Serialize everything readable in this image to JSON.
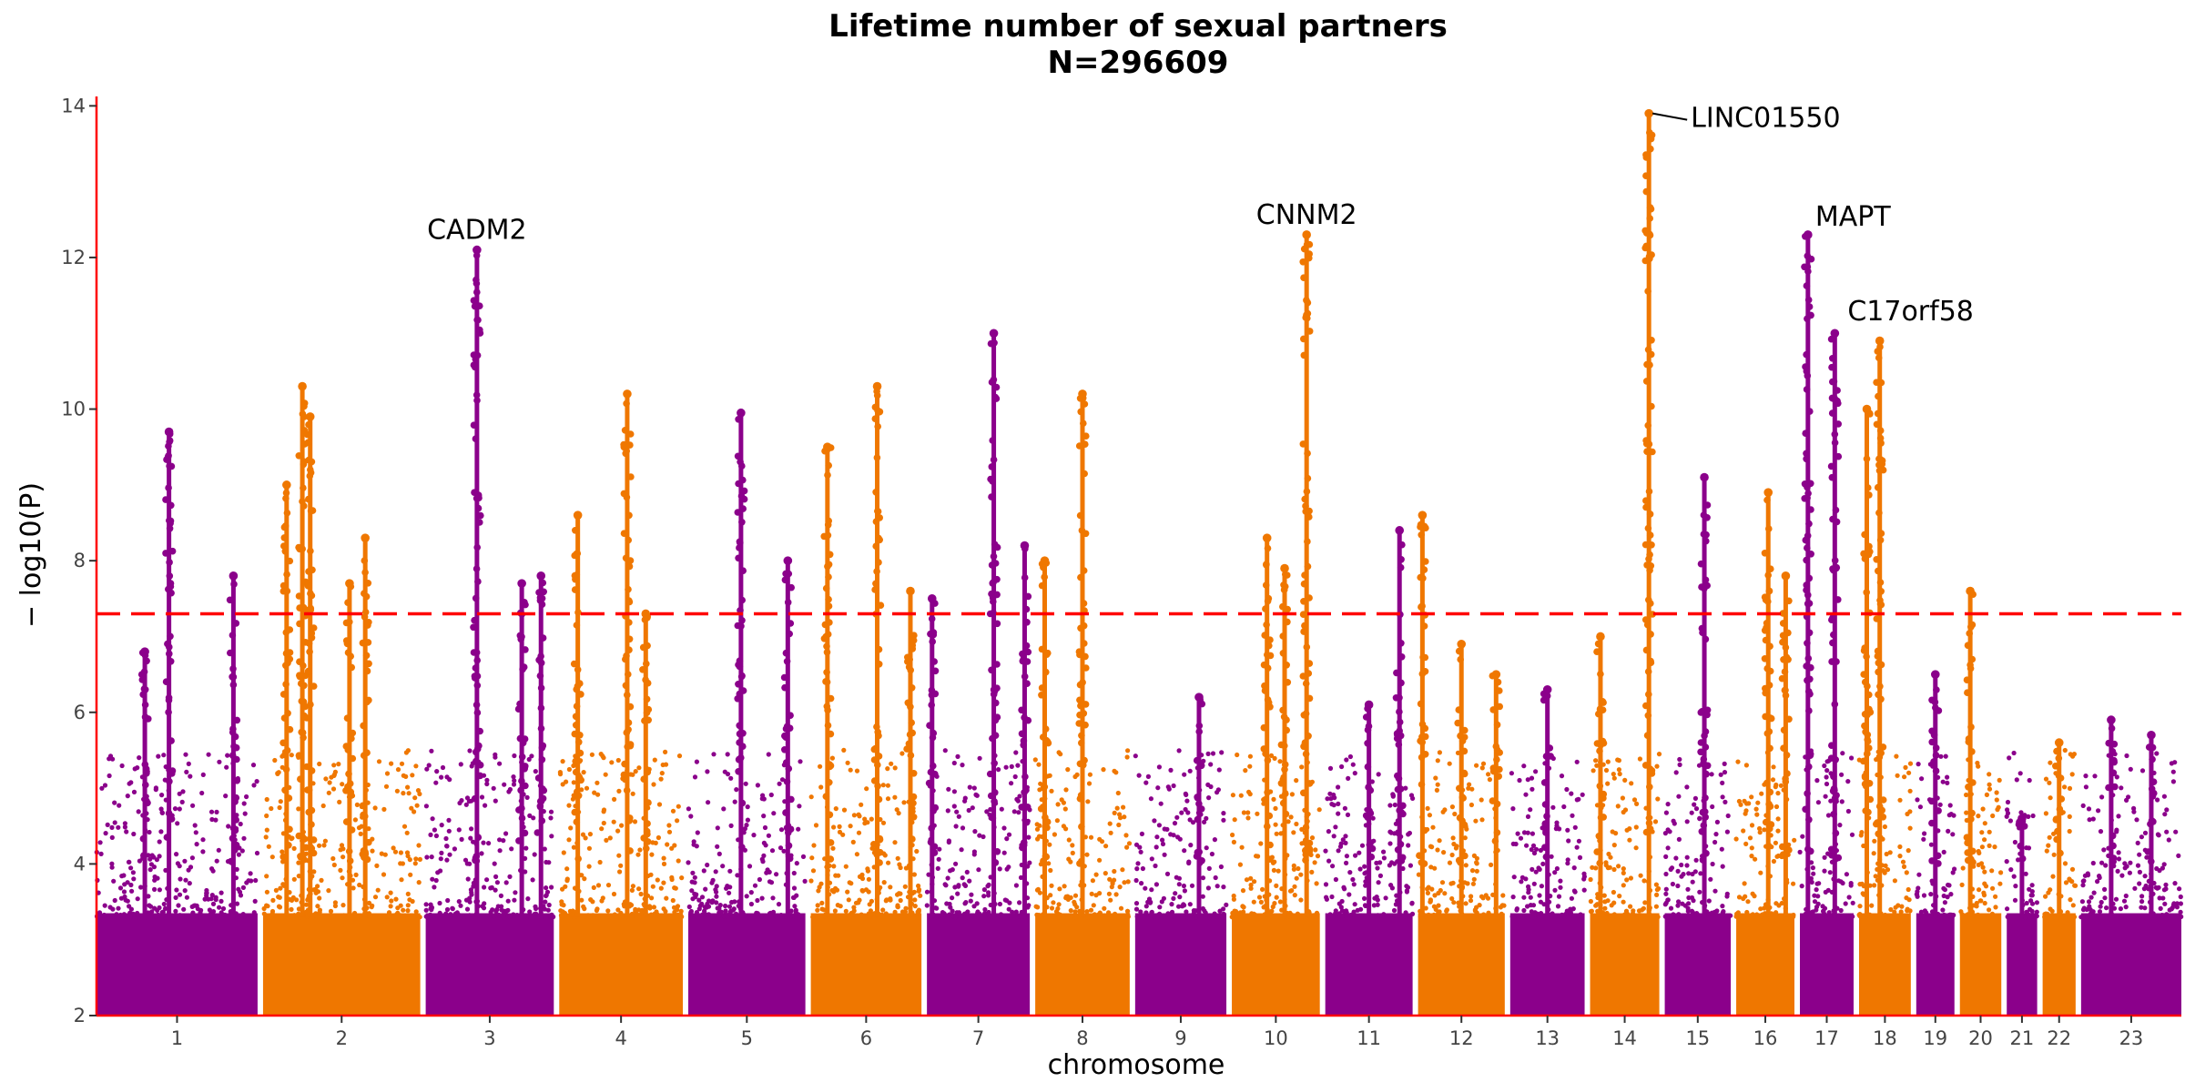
{
  "chart_data": {
    "type": "scatter",
    "subtype": "manhattan",
    "title": "Lifetime number of sexual partners",
    "subtitle": "N=296609",
    "xlabel": "chromosome",
    "ylabel": "− log10(P)",
    "ylim": [
      2,
      14.1
    ],
    "yticks": [
      "2",
      "4",
      "6",
      "8",
      "10",
      "12",
      "14"
    ],
    "threshold": 7.3,
    "colors": {
      "odd": "#8b008b",
      "even": "#ef7700",
      "threshold": "#ff0000",
      "axis": "#ff0000"
    },
    "chromosomes": [
      {
        "label": "1",
        "len": 249,
        "peaks": [
          [
            0.45,
            9.7
          ],
          [
            0.85,
            7.8
          ],
          [
            0.3,
            6.8
          ]
        ]
      },
      {
        "label": "2",
        "len": 243,
        "peaks": [
          [
            0.15,
            9.0
          ],
          [
            0.25,
            10.3
          ],
          [
            0.3,
            9.9
          ],
          [
            0.55,
            7.7
          ],
          [
            0.65,
            8.3
          ]
        ]
      },
      {
        "label": "3",
        "len": 198,
        "peaks": [
          [
            0.4,
            12.1
          ],
          [
            0.75,
            7.7
          ],
          [
            0.9,
            7.8
          ]
        ]
      },
      {
        "label": "4",
        "len": 191,
        "peaks": [
          [
            0.15,
            8.6
          ],
          [
            0.55,
            10.2
          ],
          [
            0.7,
            7.3
          ]
        ]
      },
      {
        "label": "5",
        "len": 181,
        "peaks": [
          [
            0.45,
            9.95
          ],
          [
            0.85,
            8.0
          ]
        ]
      },
      {
        "label": "6",
        "len": 171,
        "peaks": [
          [
            0.15,
            9.5
          ],
          [
            0.6,
            10.3
          ],
          [
            0.9,
            7.6
          ]
        ]
      },
      {
        "label": "7",
        "len": 159,
        "peaks": [
          [
            0.05,
            7.5
          ],
          [
            0.65,
            11.0
          ],
          [
            0.95,
            8.2
          ]
        ]
      },
      {
        "label": "8",
        "len": 146,
        "peaks": [
          [
            0.1,
            8.0
          ],
          [
            0.5,
            10.2
          ]
        ]
      },
      {
        "label": "9",
        "len": 141,
        "peaks": [
          [
            0.7,
            6.2
          ]
        ]
      },
      {
        "label": "10",
        "len": 136,
        "peaks": [
          [
            0.4,
            8.3
          ],
          [
            0.85,
            12.3
          ],
          [
            0.6,
            7.9
          ]
        ]
      },
      {
        "label": "11",
        "len": 135,
        "peaks": [
          [
            0.85,
            8.4
          ],
          [
            0.5,
            6.1
          ]
        ]
      },
      {
        "label": "12",
        "len": 134,
        "peaks": [
          [
            0.05,
            8.6
          ],
          [
            0.5,
            6.9
          ],
          [
            0.9,
            6.5
          ]
        ]
      },
      {
        "label": "13",
        "len": 115,
        "peaks": [
          [
            0.5,
            6.3
          ]
        ]
      },
      {
        "label": "14",
        "len": 107,
        "peaks": [
          [
            0.15,
            7.0
          ],
          [
            0.85,
            13.9
          ]
        ]
      },
      {
        "label": "15",
        "len": 102,
        "peaks": [
          [
            0.6,
            9.1
          ]
        ]
      },
      {
        "label": "16",
        "len": 90,
        "peaks": [
          [
            0.55,
            8.9
          ],
          [
            0.85,
            7.8
          ]
        ]
      },
      {
        "label": "17",
        "len": 83,
        "peaks": [
          [
            0.15,
            12.3
          ],
          [
            0.65,
            11.0
          ]
        ]
      },
      {
        "label": "18",
        "len": 80,
        "peaks": [
          [
            0.4,
            10.9
          ],
          [
            0.15,
            10.0
          ]
        ]
      },
      {
        "label": "19",
        "len": 59,
        "peaks": [
          [
            0.5,
            6.5
          ]
        ]
      },
      {
        "label": "20",
        "len": 64,
        "peaks": [
          [
            0.25,
            7.6
          ]
        ]
      },
      {
        "label": "21",
        "len": 47,
        "peaks": [
          [
            0.5,
            4.6
          ]
        ]
      },
      {
        "label": "22",
        "len": 51,
        "peaks": [
          [
            0.5,
            5.6
          ]
        ]
      },
      {
        "label": "23",
        "len": 155,
        "peaks": [
          [
            0.3,
            5.9
          ],
          [
            0.7,
            5.7
          ]
        ]
      }
    ],
    "annotations": [
      {
        "label": "CADM2",
        "chr": "3",
        "y": 12.1
      },
      {
        "label": "CNNM2",
        "chr": "10",
        "y": 12.3
      },
      {
        "label": "LINC01550",
        "chr": "14",
        "y": 13.9
      },
      {
        "label": "MAPT",
        "chr": "17",
        "y": 12.3
      },
      {
        "label": "C17orf58",
        "chr": "17",
        "y": 11.05
      }
    ]
  }
}
